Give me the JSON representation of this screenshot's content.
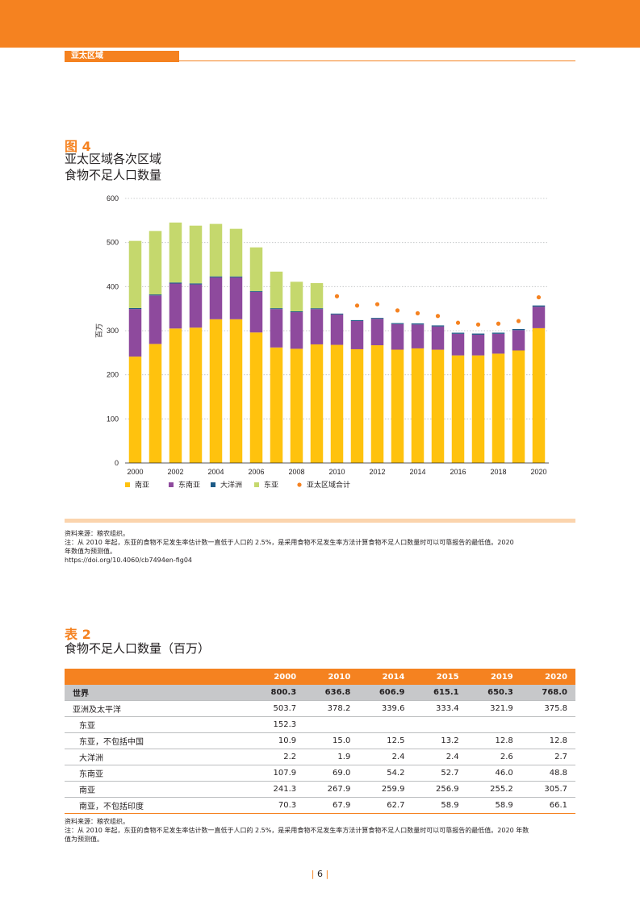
{
  "header": {
    "section_tab": "亚太区域"
  },
  "figure": {
    "label": "图 4",
    "title_line1": "亚太区域各次区域",
    "title_line2": "食物不足人口数量"
  },
  "chart_data": {
    "type": "bar",
    "stacked": true,
    "ylabel": "百万",
    "ylim": [
      0,
      600
    ],
    "yticks": [
      0,
      100,
      200,
      300,
      400,
      500,
      600
    ],
    "grid": "horizontal dotted",
    "legend_position": "bottom",
    "x": [
      2000,
      2001,
      2002,
      2003,
      2004,
      2005,
      2006,
      2007,
      2008,
      2009,
      2010,
      2011,
      2012,
      2013,
      2014,
      2015,
      2016,
      2017,
      2018,
      2019,
      2020
    ],
    "x_tick_labels": [
      "2000",
      "2002",
      "2004",
      "2006",
      "2008",
      "2010",
      "2012",
      "2014",
      "2016",
      "2018",
      "2020"
    ],
    "series": [
      {
        "name": "南亚",
        "color": "#ffc20e",
        "values": [
          241.3,
          270,
          305,
          307,
          326,
          326,
          296,
          262,
          259,
          269,
          267.9,
          258,
          267,
          257,
          259.9,
          256.9,
          244,
          244,
          248,
          255.2,
          305.7
        ]
      },
      {
        "name": "东南亚",
        "color": "#8e4a9d",
        "values": [
          107.9,
          110,
          102,
          98,
          95,
          95,
          92,
          87,
          83,
          80,
          69.0,
          64,
          60,
          58,
          54.2,
          52.7,
          49,
          47,
          45,
          46.0,
          48.8
        ]
      },
      {
        "name": "大洋洲",
        "color": "#1c5a86",
        "values": [
          2.2,
          2.2,
          2.3,
          2.3,
          2.2,
          2.1,
          2.0,
          2.0,
          2.0,
          1.9,
          1.9,
          2.0,
          2.0,
          2.2,
          2.4,
          2.4,
          2.4,
          2.5,
          2.5,
          2.6,
          2.7
        ]
      },
      {
        "name": "东亚",
        "color": "#c5d86d",
        "values": [
          152.3,
          144,
          136,
          131,
          119,
          108,
          99,
          83,
          67,
          57,
          0,
          0,
          0,
          0,
          0,
          0,
          0,
          0,
          0,
          0,
          0
        ]
      }
    ],
    "total_series": {
      "name": "亚太区域合计",
      "color": "#f58220",
      "years": [
        2010,
        2011,
        2012,
        2013,
        2014,
        2015,
        2016,
        2017,
        2018,
        2019,
        2020
      ],
      "values": [
        378.2,
        357,
        360,
        346,
        339.6,
        333.4,
        318,
        314,
        316,
        321.9,
        375.8
      ]
    }
  },
  "figure_notes": {
    "source": "资料来源：粮农组织。",
    "note_line1": "注：从 2010 年起，东亚的食物不足发生率估计数一直低于人口的 2.5%，是采用食物不足发生率方法计算食物不足人口数量时可以可靠报告的最低值。2020",
    "note_line2": "年数值为预测值。",
    "doi": "https://doi.org/10.4060/cb7494en-fig04"
  },
  "table": {
    "label": "表 2",
    "title": "食物不足人口数量（百万）",
    "columns": [
      "",
      "2000",
      "2010",
      "2014",
      "2015",
      "2019",
      "2020"
    ],
    "rows": [
      {
        "name": "世界",
        "values": [
          "800.3",
          "636.8",
          "606.9",
          "615.1",
          "650.3",
          "768.0"
        ]
      },
      {
        "name": "亚洲及太平洋",
        "values": [
          "503.7",
          "378.2",
          "339.6",
          "333.4",
          "321.9",
          "375.8"
        ]
      },
      {
        "name": "东亚",
        "values": [
          "152.3",
          "",
          "",
          "",
          "",
          ""
        ]
      },
      {
        "name": "东亚，不包括中国",
        "values": [
          "10.9",
          "15.0",
          "12.5",
          "13.2",
          "12.8",
          "12.8"
        ]
      },
      {
        "name": "大洋洲",
        "values": [
          "2.2",
          "1.9",
          "2.4",
          "2.4",
          "2.6",
          "2.7"
        ]
      },
      {
        "name": "东南亚",
        "values": [
          "107.9",
          "69.0",
          "54.2",
          "52.7",
          "46.0",
          "48.8"
        ]
      },
      {
        "name": "南亚",
        "values": [
          "241.3",
          "267.9",
          "259.9",
          "256.9",
          "255.2",
          "305.7"
        ]
      },
      {
        "name": "南亚，不包括印度",
        "values": [
          "70.3",
          "67.9",
          "62.7",
          "58.9",
          "58.9",
          "66.1"
        ]
      }
    ]
  },
  "table_notes": {
    "source": "资料来源：粮农组织。",
    "note_line1": "注：从 2010 年起，东亚的食物不足发生率估计数一直低于人口的 2.5%，是采用食物不足发生率方法计算食物不足人口数量时可以可靠报告的最低值。2020 年数",
    "note_line2": "值为预测值。"
  },
  "footer": {
    "page_number": "6"
  }
}
